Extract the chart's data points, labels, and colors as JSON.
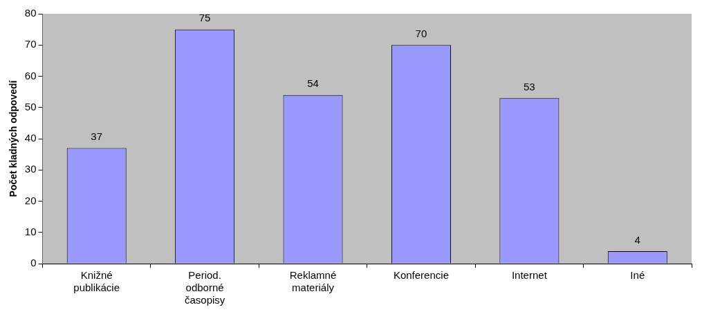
{
  "chart_data": {
    "type": "bar",
    "ylabel": "Počet kladných odpovedí",
    "categories": [
      "Knižné publikácie",
      "Period. odborné časopisy",
      "Reklamné materiály",
      "Konferencie",
      "Internet",
      "Iné"
    ],
    "values": [
      37,
      75,
      54,
      70,
      53,
      4
    ],
    "color": "#9999ff",
    "ylim": [
      0,
      80
    ],
    "yticks": [
      0,
      10,
      20,
      30,
      40,
      50,
      60,
      70,
      80
    ],
    "grid": false,
    "legend": false,
    "data_labels": true
  }
}
